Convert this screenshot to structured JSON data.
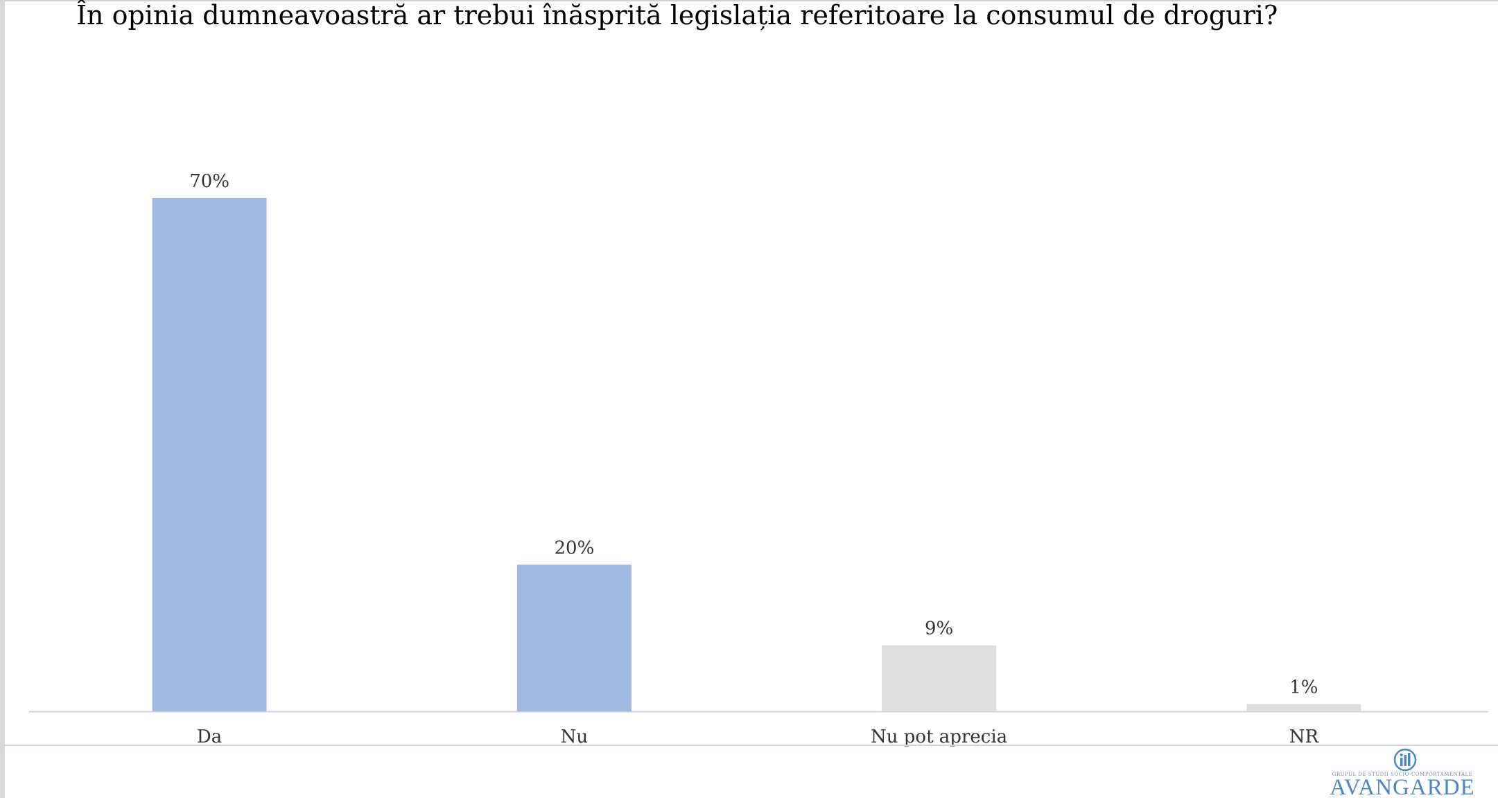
{
  "chart_data": {
    "type": "bar",
    "title": "În opinia dumneavoastră ar trebui înăsprită legislația referitoare la consumul de droguri?",
    "xlabel": "",
    "ylabel": "",
    "categories": [
      "Da",
      "Nu",
      "Nu pot aprecia",
      "NR"
    ],
    "values": [
      70,
      20,
      9,
      1
    ],
    "value_labels": [
      "70%",
      "20%",
      "9%",
      "1%"
    ],
    "unit": "%",
    "ylim": [
      0,
      100
    ],
    "grid": false,
    "legend": "none",
    "colors": [
      "#a2b9e1",
      "#a2b9e1",
      "#dedede",
      "#dedede"
    ]
  },
  "brand": {
    "name": "AVANGARDE",
    "tagline": "GRUPUL DE STUDII SOCIO-COMPORTAMENTALE",
    "color": "#4a86c5",
    "icon": "avangarde-logo-icon"
  },
  "colors": {
    "axis": "#c9d3df",
    "label": "#333333"
  }
}
